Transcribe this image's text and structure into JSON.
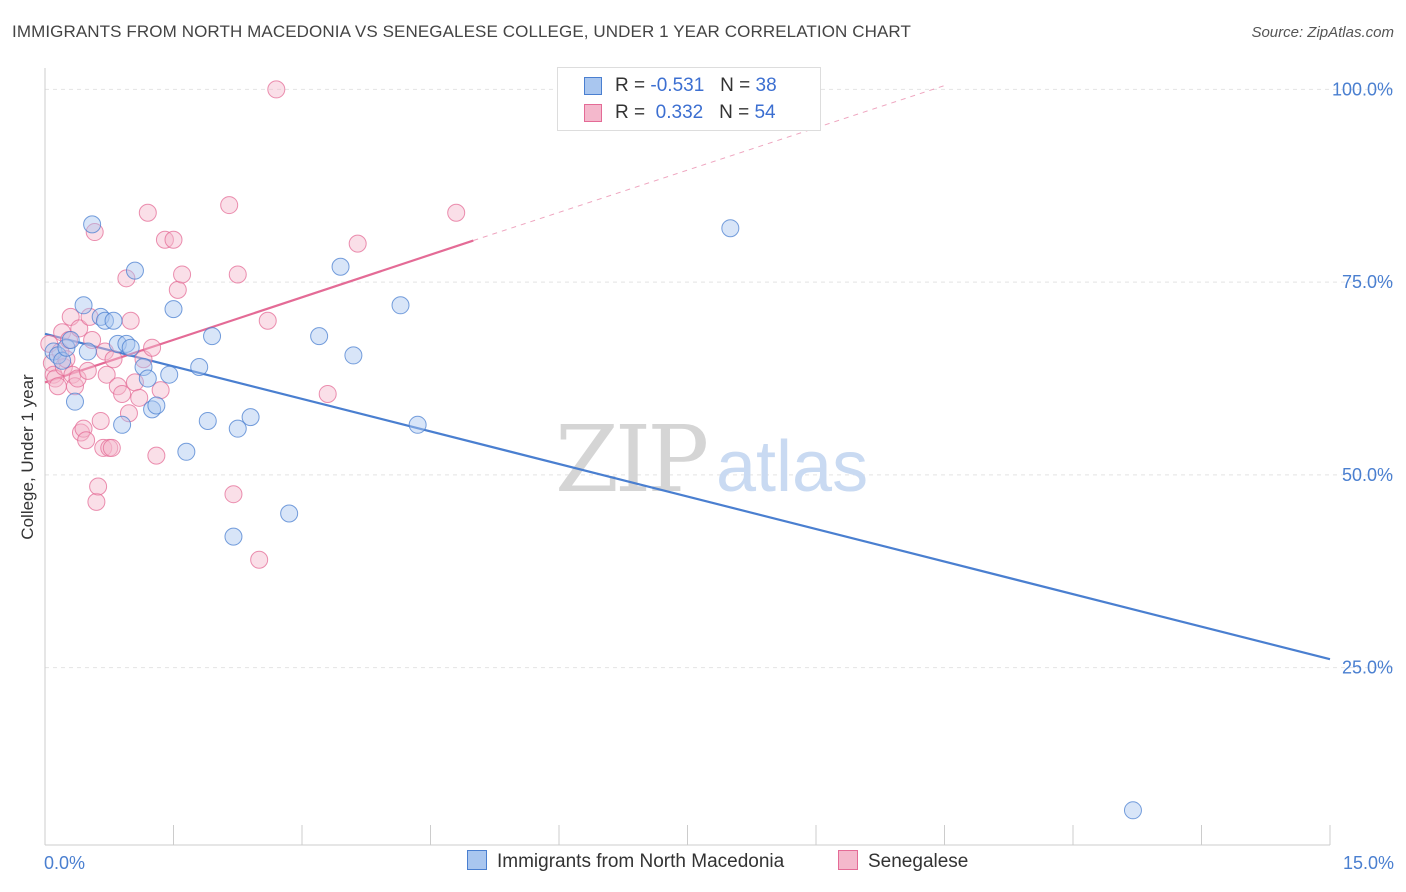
{
  "title": "IMMIGRANTS FROM NORTH MACEDONIA VS SENEGALESE COLLEGE, UNDER 1 YEAR CORRELATION CHART",
  "source": "Source: ZipAtlas.com",
  "watermark": {
    "zip": "ZIP",
    "atlas": "atlas"
  },
  "colors": {
    "blue": "#4a7fd0",
    "blue_fill": "#a9c6ef",
    "pink": "#e46b96",
    "pink_fill": "#f4b8cc"
  },
  "legend": {
    "blue": {
      "r_label": "R =",
      "r_value": "-0.531",
      "n_label": "N =",
      "n_value": "38"
    },
    "pink": {
      "r_label": "R =",
      "r_value": "0.332",
      "n_label": "N =",
      "n_value": "54"
    }
  },
  "chart_data": {
    "type": "scatter",
    "title": "IMMIGRANTS FROM NORTH MACEDONIA VS SENEGALESE COLLEGE, UNDER 1 YEAR CORRELATION CHART",
    "xlabel": "",
    "ylabel": "College, Under 1 year",
    "xlim": [
      0,
      15
    ],
    "ylim": [
      2,
      102
    ],
    "x_tick_labels": [
      "0.0%",
      "15.0%"
    ],
    "y_ticks": [
      25,
      50,
      75,
      100
    ],
    "y_tick_labels": [
      "25.0%",
      "50.0%",
      "75.0%",
      "100.0%"
    ],
    "grid": true,
    "legend_position": "top-center",
    "series": [
      {
        "name": "Immigrants from North Macedonia",
        "color": "#4a7fd0",
        "trend": {
          "x": [
            0,
            15
          ],
          "y": [
            68.3,
            26.1
          ]
        },
        "points": [
          [
            0.1,
            66.0
          ],
          [
            0.15,
            65.5
          ],
          [
            0.2,
            64.8
          ],
          [
            0.25,
            66.5
          ],
          [
            0.3,
            67.5
          ],
          [
            0.35,
            59.5
          ],
          [
            0.45,
            72.0
          ],
          [
            0.5,
            66.0
          ],
          [
            0.55,
            82.5
          ],
          [
            0.65,
            70.5
          ],
          [
            0.7,
            70.0
          ],
          [
            0.8,
            70.0
          ],
          [
            0.85,
            67.0
          ],
          [
            0.9,
            56.5
          ],
          [
            0.95,
            67.0
          ],
          [
            1.0,
            66.5
          ],
          [
            1.05,
            76.5
          ],
          [
            1.15,
            64.0
          ],
          [
            1.2,
            62.5
          ],
          [
            1.25,
            58.5
          ],
          [
            1.3,
            59.0
          ],
          [
            1.45,
            63.0
          ],
          [
            1.5,
            71.5
          ],
          [
            1.65,
            53.0
          ],
          [
            1.8,
            64.0
          ],
          [
            1.9,
            57.0
          ],
          [
            1.95,
            68.0
          ],
          [
            2.2,
            42.0
          ],
          [
            2.25,
            56.0
          ],
          [
            2.4,
            57.5
          ],
          [
            2.85,
            45.0
          ],
          [
            3.2,
            68.0
          ],
          [
            3.45,
            77.0
          ],
          [
            3.6,
            65.5
          ],
          [
            4.15,
            72.0
          ],
          [
            4.35,
            56.5
          ],
          [
            8.0,
            82.0
          ],
          [
            12.7,
            6.5
          ]
        ]
      },
      {
        "name": "Senegalese",
        "color": "#e46b96",
        "trend": {
          "x": [
            0,
            5
          ],
          "y": [
            62.0,
            80.4
          ],
          "dashed_x": [
            5,
            10.5
          ],
          "dashed_y": [
            80.4,
            100.5
          ]
        },
        "points": [
          [
            0.05,
            67.0
          ],
          [
            0.08,
            64.5
          ],
          [
            0.1,
            63.0
          ],
          [
            0.12,
            62.5
          ],
          [
            0.15,
            61.5
          ],
          [
            0.18,
            66.0
          ],
          [
            0.2,
            68.5
          ],
          [
            0.22,
            64.0
          ],
          [
            0.25,
            65.0
          ],
          [
            0.28,
            67.5
          ],
          [
            0.3,
            70.5
          ],
          [
            0.32,
            63.0
          ],
          [
            0.35,
            61.5
          ],
          [
            0.38,
            62.5
          ],
          [
            0.4,
            69.0
          ],
          [
            0.42,
            55.5
          ],
          [
            0.45,
            56.0
          ],
          [
            0.48,
            54.5
          ],
          [
            0.5,
            63.5
          ],
          [
            0.52,
            70.5
          ],
          [
            0.55,
            67.5
          ],
          [
            0.58,
            81.5
          ],
          [
            0.6,
            46.5
          ],
          [
            0.62,
            48.5
          ],
          [
            0.65,
            57.0
          ],
          [
            0.68,
            53.5
          ],
          [
            0.7,
            66.0
          ],
          [
            0.72,
            63.0
          ],
          [
            0.75,
            53.5
          ],
          [
            0.78,
            53.5
          ],
          [
            0.8,
            65.0
          ],
          [
            0.85,
            61.5
          ],
          [
            0.9,
            60.5
          ],
          [
            0.95,
            75.5
          ],
          [
            0.98,
            58.0
          ],
          [
            1.0,
            70.0
          ],
          [
            1.05,
            62.0
          ],
          [
            1.1,
            60.0
          ],
          [
            1.15,
            65.0
          ],
          [
            1.2,
            84.0
          ],
          [
            1.25,
            66.5
          ],
          [
            1.3,
            52.5
          ],
          [
            1.35,
            61.0
          ],
          [
            1.4,
            80.5
          ],
          [
            1.5,
            80.5
          ],
          [
            1.55,
            74.0
          ],
          [
            1.6,
            76.0
          ],
          [
            2.15,
            85.0
          ],
          [
            2.2,
            47.5
          ],
          [
            2.25,
            76.0
          ],
          [
            2.5,
            39.0
          ],
          [
            2.6,
            70.0
          ],
          [
            2.7,
            100.0
          ],
          [
            3.3,
            60.5
          ],
          [
            3.65,
            80.0
          ],
          [
            4.8,
            84.0
          ]
        ]
      }
    ]
  },
  "bottom_legend": {
    "blue": "Immigrants from North Macedonia",
    "pink": "Senegalese"
  }
}
